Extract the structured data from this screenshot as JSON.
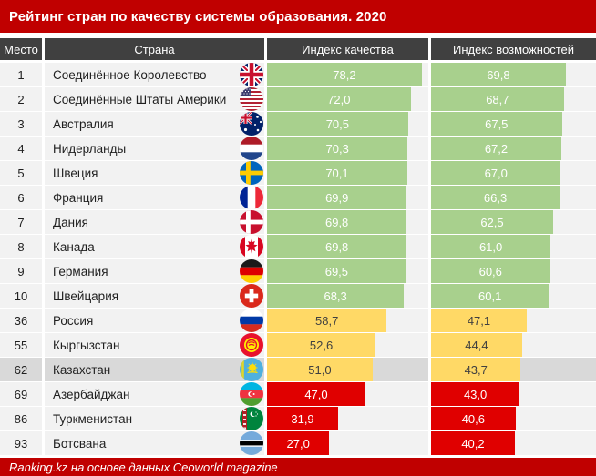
{
  "title": "Рейтинг стран по качеству системы образования. 2020",
  "source": "Ranking.kz на основе данных Ceoworld magazine",
  "colors": {
    "title_bg": "#C00000",
    "header_bg": "#404040",
    "row_bg": "#F2F2F2",
    "highlight_row_bg": "#D9D9D9",
    "bar_green": "#A8D08D",
    "bar_yellow": "#FFD966",
    "bar_red": "#E00000",
    "footer_bg": "#C00000"
  },
  "table": {
    "headers": {
      "place": "Место",
      "country": "Страна",
      "quality": "Индекс качества",
      "opportunity": "Индекс возможностей"
    },
    "rows": [
      {
        "place": "1",
        "country": "Соединённое Королевство",
        "flag": "uk",
        "quality": "78,2",
        "opportunity": "69,8",
        "tier": "green",
        "highlight": false
      },
      {
        "place": "2",
        "country": "Соединённые Штаты Америки",
        "flag": "us",
        "quality": "72,0",
        "opportunity": "68,7",
        "tier": "green",
        "highlight": false
      },
      {
        "place": "3",
        "country": "Австралия",
        "flag": "au",
        "quality": "70,5",
        "opportunity": "67,5",
        "tier": "green",
        "highlight": false
      },
      {
        "place": "4",
        "country": "Нидерланды",
        "flag": "nl",
        "quality": "70,3",
        "opportunity": "67,2",
        "tier": "green",
        "highlight": false
      },
      {
        "place": "5",
        "country": "Швеция",
        "flag": "se",
        "quality": "70,1",
        "opportunity": "67,0",
        "tier": "green",
        "highlight": false
      },
      {
        "place": "6",
        "country": "Франция",
        "flag": "fr",
        "quality": "69,9",
        "opportunity": "66,3",
        "tier": "green",
        "highlight": false
      },
      {
        "place": "7",
        "country": "Дания",
        "flag": "dk",
        "quality": "69,8",
        "opportunity": "62,5",
        "tier": "green",
        "highlight": false
      },
      {
        "place": "8",
        "country": "Канада",
        "flag": "ca",
        "quality": "69,8",
        "opportunity": "61,0",
        "tier": "green",
        "highlight": false
      },
      {
        "place": "9",
        "country": "Германия",
        "flag": "de",
        "quality": "69,5",
        "opportunity": "60,6",
        "tier": "green",
        "highlight": false
      },
      {
        "place": "10",
        "country": "Швейцария",
        "flag": "ch",
        "quality": "68,3",
        "opportunity": "60,1",
        "tier": "green",
        "highlight": false
      },
      {
        "place": "36",
        "country": "Россия",
        "flag": "ru",
        "quality": "58,7",
        "opportunity": "47,1",
        "tier": "yellow",
        "highlight": false
      },
      {
        "place": "55",
        "country": "Кыргызстан",
        "flag": "kg",
        "quality": "52,6",
        "opportunity": "44,4",
        "tier": "yellow",
        "highlight": false
      },
      {
        "place": "62",
        "country": "Казахстан",
        "flag": "kz",
        "quality": "51,0",
        "opportunity": "43,7",
        "tier": "yellow",
        "highlight": true
      },
      {
        "place": "69",
        "country": "Азербайджан",
        "flag": "az",
        "quality": "47,0",
        "opportunity": "43,0",
        "tier": "red",
        "highlight": false
      },
      {
        "place": "86",
        "country": "Туркменистан",
        "flag": "tm",
        "quality": "31,9",
        "opportunity": "40,6",
        "tier": "red",
        "highlight": false
      },
      {
        "place": "93",
        "country": "Ботсвана",
        "flag": "bw",
        "quality": "27,0",
        "opportunity": "40,2",
        "tier": "red",
        "highlight": false
      }
    ]
  },
  "chart_data": {
    "type": "bar",
    "title": "Рейтинг стран по качеству системы образования. 2020",
    "categories": [
      "Соединённое Королевство",
      "Соединённые Штаты Америки",
      "Австралия",
      "Нидерланды",
      "Швеция",
      "Франция",
      "Дания",
      "Канада",
      "Германия",
      "Швейцария",
      "Россия",
      "Кыргызстан",
      "Казахстан",
      "Азербайджан",
      "Туркменистан",
      "Ботсвана"
    ],
    "ranks": [
      1,
      2,
      3,
      4,
      5,
      6,
      7,
      8,
      9,
      10,
      36,
      55,
      62,
      69,
      86,
      93
    ],
    "series": [
      {
        "name": "Индекс качества",
        "values": [
          78.2,
          72.0,
          70.5,
          70.3,
          70.1,
          69.9,
          69.8,
          69.8,
          69.5,
          68.3,
          58.7,
          52.6,
          51.0,
          47.0,
          31.9,
          27.0
        ]
      },
      {
        "name": "Индекс возможностей",
        "values": [
          69.8,
          68.7,
          67.5,
          67.2,
          67.0,
          66.3,
          62.5,
          61.0,
          60.6,
          60.1,
          47.1,
          44.4,
          43.7,
          43.0,
          40.6,
          40.2
        ]
      }
    ],
    "xlim": [
      0,
      80
    ],
    "legend": "none",
    "grid": false,
    "value_label_format": "comma-decimal, 1 digit",
    "tier_colors": {
      "green": "ranks 1-10",
      "yellow": "ranks 36-62",
      "red": "ranks 69-93"
    }
  }
}
